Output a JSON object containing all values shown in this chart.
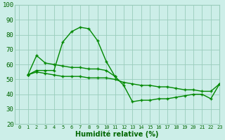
{
  "title": "",
  "xlabel": "Humidité relative (%)",
  "ylabel": "",
  "background_color": "#cceee8",
  "grid_color": "#99ccbb",
  "line_color": "#008800",
  "xlim": [
    -0.5,
    23
  ],
  "ylim": [
    20,
    100
  ],
  "yticks": [
    20,
    30,
    40,
    50,
    60,
    70,
    80,
    90,
    100
  ],
  "xtick_vals": [
    0,
    1,
    2,
    3,
    4,
    5,
    6,
    7,
    8,
    9,
    10,
    11,
    12,
    13,
    14,
    15,
    16,
    17,
    18,
    19,
    20,
    21,
    22,
    23
  ],
  "xtick_labels": [
    "0",
    "1",
    "2",
    "3",
    "4",
    "5",
    "6",
    "7",
    "8",
    "9",
    "10",
    "11",
    "12",
    "13",
    "14",
    "15",
    "16",
    "17",
    "18",
    "19",
    "20",
    "21",
    "22",
    "23"
  ],
  "line1": {
    "x": [
      1,
      2,
      3,
      4,
      5,
      6,
      7,
      8,
      9,
      10,
      11
    ],
    "y": [
      53,
      56,
      56,
      56,
      75,
      82,
      85,
      84,
      76,
      62,
      52
    ]
  },
  "line2": {
    "x": [
      1,
      2,
      3,
      4,
      5,
      6,
      7,
      8,
      9,
      10,
      11,
      12,
      13,
      14,
      15,
      16,
      17,
      18,
      19,
      20,
      21,
      22,
      23
    ],
    "y": [
      53,
      55,
      54,
      53,
      52,
      52,
      52,
      51,
      51,
      51,
      50,
      48,
      47,
      46,
      46,
      45,
      45,
      44,
      43,
      43,
      42,
      42,
      47
    ]
  },
  "line3": {
    "x": [
      1,
      2,
      3,
      4,
      5,
      6,
      7,
      8,
      9,
      10,
      11,
      12,
      13,
      14,
      15,
      16,
      17,
      18,
      19,
      20,
      21,
      22,
      23
    ],
    "y": [
      53,
      66,
      61,
      60,
      59,
      58,
      58,
      57,
      57,
      56,
      52,
      46,
      35,
      36,
      36,
      37,
      37,
      38,
      39,
      40,
      40,
      37,
      47
    ]
  }
}
